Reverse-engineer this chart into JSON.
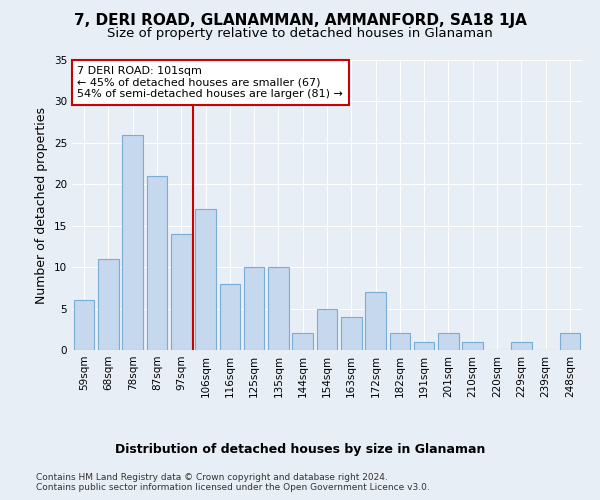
{
  "title": "7, DERI ROAD, GLANAMMAN, AMMANFORD, SA18 1JA",
  "subtitle": "Size of property relative to detached houses in Glanaman",
  "xlabel": "Distribution of detached houses by size in Glanaman",
  "ylabel": "Number of detached properties",
  "categories": [
    "59sqm",
    "68sqm",
    "78sqm",
    "87sqm",
    "97sqm",
    "106sqm",
    "116sqm",
    "125sqm",
    "135sqm",
    "144sqm",
    "154sqm",
    "163sqm",
    "172sqm",
    "182sqm",
    "191sqm",
    "201sqm",
    "210sqm",
    "220sqm",
    "229sqm",
    "239sqm",
    "248sqm"
  ],
  "values": [
    6,
    11,
    26,
    21,
    14,
    17,
    8,
    10,
    10,
    2,
    5,
    4,
    7,
    2,
    1,
    2,
    1,
    0,
    1,
    0,
    2
  ],
  "bar_color": "#c5d8ed",
  "bar_edge_color": "#7aadd4",
  "vline_x": 4.5,
  "vline_label": "7 DERI ROAD: 101sqm",
  "annotation_line1": "← 45% of detached houses are smaller (67)",
  "annotation_line2": "54% of semi-detached houses are larger (81) →",
  "annotation_box_color": "#ffffff",
  "annotation_box_edge": "#cc0000",
  "vline_color": "#cc0000",
  "ylim": [
    0,
    35
  ],
  "yticks": [
    0,
    5,
    10,
    15,
    20,
    25,
    30,
    35
  ],
  "footer_line1": "Contains HM Land Registry data © Crown copyright and database right 2024.",
  "footer_line2": "Contains public sector information licensed under the Open Government Licence v3.0.",
  "background_color": "#e8eef5",
  "plot_bg_color": "#e8eef5",
  "title_fontsize": 11,
  "subtitle_fontsize": 9.5,
  "axis_label_fontsize": 9,
  "tick_fontsize": 7.5,
  "footer_fontsize": 6.5,
  "annotation_fontsize": 8
}
